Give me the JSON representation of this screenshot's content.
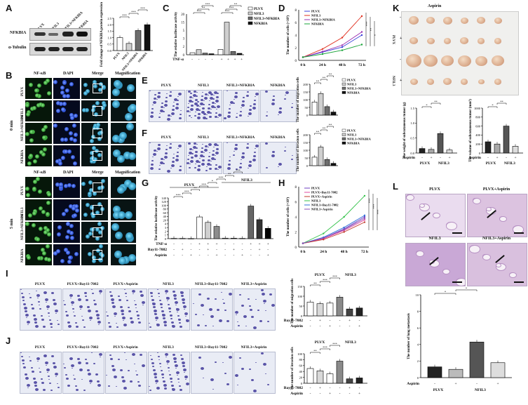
{
  "panels": {
    "A": {
      "letter": "A",
      "blot_cols": [
        "PLVX",
        "NFIL3",
        "NFIL3+NFKBIA",
        "NFKBIA"
      ],
      "blot_rows": [
        "NFKBIA",
        "α-Tubulin"
      ],
      "ylabel": "Fold change of NFKBIA protein expression",
      "chart_data": {
        "type": "bar",
        "categories": [
          "PLVX",
          "NFIL3",
          "NFIL3+NFKBIA",
          "NFKBIA"
        ],
        "values": [
          1.0,
          0.55,
          1.55,
          2.0
        ],
        "ylim": [
          0,
          2.5
        ],
        "yticks": [
          "0.0",
          "0.5",
          "1.0",
          "1.5",
          "2.0",
          "2.5"
        ],
        "sig": [
          "***",
          "***",
          "***"
        ]
      }
    },
    "B": {
      "letter": "B",
      "cols": [
        "NF-κB",
        "DAPI",
        "Merge",
        "Magnification"
      ],
      "rows": [
        "PLVX",
        "NFIL3",
        "NFIL3+NFKBIA",
        "NFKBIA"
      ],
      "group_top": "0 min",
      "group_bottom": "5 min"
    },
    "C": {
      "letter": "C",
      "ylabel": "The relative luciferase activity",
      "legend": [
        "PLVX",
        "NFIL3",
        "NFIL3+NFKBIA",
        "NFKBIA"
      ],
      "xrow_label": "TNF-α",
      "xrow": [
        "-",
        "-",
        "-",
        "-",
        "+",
        "+",
        "+",
        "+"
      ],
      "chart_data": {
        "type": "bar",
        "series": [
          {
            "name": "PLVX",
            "values": [
              1.0,
              2.6
            ]
          },
          {
            "name": "NFIL3",
            "values": [
              2.5,
              16.0
            ]
          },
          {
            "name": "NFIL3+NFKBIA",
            "values": [
              0.8,
              1.6
            ]
          },
          {
            "name": "NFKBIA",
            "values": [
              0.5,
              0.7
            ]
          }
        ],
        "categories": [
          "-",
          "+"
        ],
        "ylim": [
          0,
          20
        ],
        "yticks": [
          "0",
          "2",
          "3",
          "5",
          "15",
          "20"
        ],
        "sig": [
          "***",
          "**",
          "***",
          "***",
          "***",
          "**"
        ]
      }
    },
    "D": {
      "letter": "D",
      "ylabel": "The number of cells (×10⁵)",
      "legend": [
        "PLVX",
        "NFIL3",
        "NFIL3+NFKBIA",
        "NFKBIA"
      ],
      "colors": [
        "#3b40d8",
        "#e03020",
        "#9b2fb0",
        "#1aa43a"
      ],
      "chart_data": {
        "type": "line",
        "x": [
          "0 h",
          "24 h",
          "48 h",
          "72 h"
        ],
        "series": [
          {
            "name": "PLVX",
            "values": [
              0.5,
              1.3,
              2.1,
              4.0
            ]
          },
          {
            "name": "NFIL3",
            "values": [
              0.5,
              1.8,
              3.6,
              7.0
            ]
          },
          {
            "name": "NFIL3+NFKBIA",
            "values": [
              0.5,
              1.4,
              2.4,
              4.5
            ]
          },
          {
            "name": "NFKBIA",
            "values": [
              0.5,
              1.0,
              1.6,
              2.5
            ]
          }
        ],
        "ylim": [
          0,
          8
        ],
        "yticks": [
          "0",
          "2",
          "4",
          "6",
          "8"
        ],
        "sig": [
          "***",
          "**",
          "*"
        ]
      }
    },
    "E": {
      "letter": "E",
      "titles": [
        "PLVX",
        "NFIL3",
        "NFIL3+NFKBIA",
        "NFKBIA"
      ],
      "ylabel": "The number of migration cells",
      "legend": [
        "PLVX",
        "NFIL3",
        "NFIL3+NFKBIA",
        "NFKBIA"
      ],
      "chart_data": {
        "type": "bar",
        "categories": [
          "PLVX",
          "NFIL3",
          "NFIL3+NFKBIA",
          "NFKBIA"
        ],
        "values": [
          85,
          140,
          55,
          20
        ],
        "ylim": [
          0,
          200
        ],
        "yticks": [
          "0",
          "50",
          "100",
          "150",
          "200"
        ],
        "sig": [
          "**",
          "**",
          "**"
        ]
      }
    },
    "F": {
      "letter": "F",
      "titles": [
        "PLVX",
        "NFIL3",
        "NFIL3+NFKBIA",
        "NFKBIA"
      ],
      "ylabel": "The number of invasion cells",
      "legend": [
        "PLVX",
        "NFIL3",
        "NFIL3+NFKBIA",
        "NFKBIA"
      ],
      "chart_data": {
        "type": "bar",
        "categories": [
          "PLVX",
          "NFIL3",
          "NFIL3+NFKBIA",
          "NFKBIA"
        ],
        "values": [
          55,
          120,
          40,
          15
        ],
        "ylim": [
          0,
          200
        ],
        "yticks": [
          "0",
          "50",
          "100",
          "150",
          "200"
        ],
        "sig": [
          "**",
          "**",
          "**"
        ]
      }
    },
    "G": {
      "letter": "G",
      "group_labels": [
        "PLVX",
        "NFIL3"
      ],
      "ylabel": "The relative luciferase activity",
      "row_labels": [
        "TNF-α",
        "Bay11-7082",
        "Aspirin"
      ],
      "rows": [
        [
          "-",
          "-",
          "-",
          "+",
          "+",
          "+",
          "-",
          "-",
          "-",
          "+",
          "+",
          "+"
        ],
        [
          "-",
          "+",
          "-",
          "-",
          "+",
          "-",
          "-",
          "+",
          "-",
          "-",
          "+",
          "-"
        ],
        [
          "-",
          "-",
          "+",
          "-",
          "-",
          "+",
          "-",
          "-",
          "+",
          "-",
          "-",
          "+"
        ]
      ],
      "chart_data": {
        "type": "bar",
        "categories": [
          "1",
          "2",
          "3",
          "4",
          "5",
          "6",
          "7",
          "8",
          "9",
          "10",
          "11",
          "12"
        ],
        "values": [
          1.0,
          0.9,
          0.5,
          80,
          60,
          45,
          1.9,
          1.8,
          1.0,
          120,
          70,
          38
        ],
        "ylim": [
          0,
          150
        ],
        "yticks": [
          "0",
          "1",
          "2",
          "3",
          "4",
          "20",
          "40",
          "60",
          "80",
          "100",
          "120",
          "140"
        ],
        "sig": [
          "***",
          "***",
          "**",
          "***",
          "*",
          "***",
          "**",
          "***"
        ]
      }
    },
    "H": {
      "letter": "H",
      "ylabel": "The number of cells (×10⁵)",
      "legend": [
        "PLVX",
        "PLVX+Bay11-7082",
        "PLVX+Aspirin",
        "NFIL3",
        "NFIL3+Bay11-7082",
        "NFIL3+Aspirin"
      ],
      "colors": [
        "#6f3fc0",
        "#e04aa0",
        "#c0392b",
        "#34c24a",
        "#2f6fd8",
        "#8a4fb5"
      ],
      "chart_data": {
        "type": "line",
        "x": [
          "0 h",
          "24 h",
          "48 h",
          "72 h"
        ],
        "series": [
          {
            "name": "PLVX",
            "values": [
              0.5,
              1.2,
              2.4,
              4.0
            ]
          },
          {
            "name": "PLVX+Bay11-7082",
            "values": [
              0.5,
              1.1,
              2.2,
              3.6
            ]
          },
          {
            "name": "PLVX+Aspirin",
            "values": [
              0.5,
              1.0,
              2.0,
              3.3
            ]
          },
          {
            "name": "NFIL3",
            "values": [
              0.5,
              1.8,
              4.0,
              6.8
            ]
          },
          {
            "name": "NFIL3+Bay11-7082",
            "values": [
              0.5,
              1.3,
              2.6,
              4.2
            ]
          },
          {
            "name": "NFIL3+Aspirin",
            "values": [
              0.5,
              1.2,
              2.3,
              3.8
            ]
          }
        ],
        "ylim": [
          0,
          8
        ],
        "yticks": [
          "0",
          "2",
          "4",
          "6",
          "8"
        ],
        "sig": [
          "***",
          "***",
          "***"
        ]
      }
    },
    "I": {
      "letter": "I",
      "titles": [
        "PLVX",
        "PLVX+Bay11-7082",
        "PLVX+Aspirin",
        "NFIL3",
        "NFIL3+Bay11-7082",
        "NFIL3+Aspirin"
      ],
      "group_labels": [
        "PLVX",
        "NFIL3"
      ],
      "ylabel": "The number of migration cells",
      "row_labels": [
        "Bay11-7082",
        "Aspirin"
      ],
      "rows": [
        [
          "-",
          "+",
          "-",
          "-",
          "+",
          "-"
        ],
        [
          "-",
          "-",
          "+",
          "-",
          "-",
          "+"
        ]
      ],
      "chart_data": {
        "type": "bar",
        "categories": [
          "1",
          "2",
          "3",
          "4",
          "5",
          "6"
        ],
        "values": [
          70,
          62,
          65,
          95,
          35,
          40
        ],
        "ylim": [
          0,
          150
        ],
        "yticks": [
          "0",
          "50",
          "100",
          "150"
        ],
        "sig": [
          "**",
          "***",
          "***"
        ]
      }
    },
    "J": {
      "letter": "J",
      "titles": [
        "PLVX",
        "PLVX+Bay11-7082",
        "PLVX+Aspirin",
        "NFIL3",
        "NFIL3+Bay11-7082",
        "NFIL3+Aspirin"
      ],
      "group_labels": [
        "PLVX",
        "NFIL3"
      ],
      "ylabel": "The number of invasion cells",
      "row_labels": [
        "Bay11-7082",
        "Aspirin"
      ],
      "rows": [
        [
          "-",
          "+",
          "-",
          "-",
          "+",
          "-"
        ],
        [
          "-",
          "-",
          "+",
          "-",
          "-",
          "+"
        ]
      ],
      "chart_data": {
        "type": "bar",
        "categories": [
          "1",
          "2",
          "3",
          "4",
          "5",
          "6"
        ],
        "values": [
          50,
          42,
          32,
          75,
          15,
          18
        ],
        "ylim": [
          0,
          100
        ],
        "yticks": [
          "0",
          "20",
          "40",
          "60",
          "80",
          "100"
        ],
        "sig": [
          "**",
          "***",
          "***"
        ]
      }
    },
    "K": {
      "letter": "K",
      "top_label": "Aspirin",
      "row_groups": [
        "PLVX",
        "NFIL3"
      ],
      "row_signs": [
        "-",
        "+",
        "-",
        "+"
      ],
      "weight": {
        "ylabel": "The weight of subcutaneous tumor (g)",
        "xrow_label": "Aspirin",
        "xrow": [
          "-",
          "+",
          "-",
          "+"
        ],
        "groups": [
          "PLVX",
          "NFIL3"
        ],
        "chart_data": {
          "type": "bar",
          "categories": [
            "1",
            "2",
            "3",
            "4"
          ],
          "values": [
            0.15,
            0.12,
            0.65,
            0.1
          ],
          "ylim": [
            0,
            1.5
          ],
          "yticks": [
            "0.0",
            "0.5",
            "1.0",
            "1.5"
          ],
          "sig": [
            "*",
            "**"
          ]
        }
      },
      "volume": {
        "ylabel": "The volume of subcutaneous tumor (mm³)",
        "xrow_label": "Aspirin",
        "xrow": [
          "-",
          "+",
          "-",
          "+"
        ],
        "groups": [
          "PLVX",
          "NFIL3"
        ],
        "chart_data": {
          "type": "bar",
          "categories": [
            "1",
            "2",
            "3",
            "4"
          ],
          "values": [
            250,
            200,
            600,
            150
          ],
          "ylim": [
            0,
            1000
          ],
          "yticks": [
            "0",
            "200",
            "400",
            "600",
            "800",
            "1000"
          ],
          "sig": [
            "*",
            "**"
          ]
        }
      }
    },
    "L": {
      "letter": "L",
      "titles": [
        "PLVX",
        "PLVX+Aspirin",
        "NFIL3",
        "NFIL3+Aspirin"
      ],
      "ylabel": "The number of lung metastasis",
      "xrow_label": "Aspirin",
      "xrow": [
        "-",
        "+",
        "-",
        "+"
      ],
      "groups": [
        "PLVX",
        "NFIL3"
      ],
      "chart_data": {
        "type": "bar",
        "categories": [
          "1",
          "2",
          "3",
          "4"
        ],
        "values": [
          1.3,
          1.0,
          4.3,
          1.8
        ],
        "ylim": [
          0,
          10
        ],
        "yticks": [
          "0",
          "2",
          "4",
          "6",
          "8",
          "10"
        ],
        "sig": [
          "*",
          "*"
        ]
      }
    }
  }
}
